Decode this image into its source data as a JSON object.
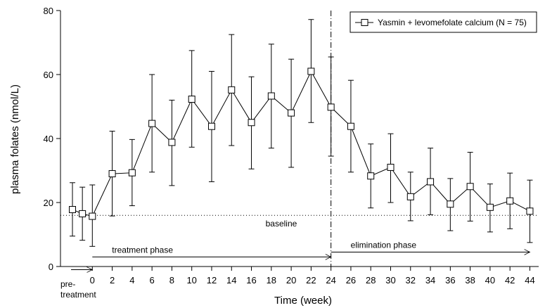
{
  "chart_data": {
    "type": "line",
    "xlabel": "Time (week)",
    "ylabel": "plasma folates (nmol/L)",
    "ylim": [
      0,
      80
    ],
    "yticks": [
      0,
      20,
      40,
      60,
      80
    ],
    "xticks": [
      0,
      2,
      4,
      6,
      8,
      10,
      12,
      14,
      16,
      18,
      20,
      22,
      24,
      26,
      28,
      30,
      32,
      34,
      36,
      38,
      40,
      42,
      44
    ],
    "pretreatment_label": [
      "pre-",
      "treatment"
    ],
    "legend": {
      "position": "top-right",
      "label": "Yasmin + levomefolate calcium (N = 75)"
    },
    "series": [
      {
        "name": "Yasmin + levomefolate calcium (N = 75)",
        "points": [
          {
            "x": -2,
            "y": 17.8,
            "lo": 9.5,
            "hi": 26.2
          },
          {
            "x": -1,
            "y": 16.5,
            "lo": 8.2,
            "hi": 24.8
          },
          {
            "x": 0,
            "y": 15.7,
            "lo": 6.3,
            "hi": 25.5
          },
          {
            "x": 2,
            "y": 29.0,
            "lo": 15.8,
            "hi": 42.3
          },
          {
            "x": 4,
            "y": 29.3,
            "lo": 19.0,
            "hi": 39.7
          },
          {
            "x": 6,
            "y": 44.7,
            "lo": 29.5,
            "hi": 60.0
          },
          {
            "x": 8,
            "y": 38.8,
            "lo": 25.3,
            "hi": 52.0
          },
          {
            "x": 10,
            "y": 52.3,
            "lo": 37.3,
            "hi": 67.5
          },
          {
            "x": 12,
            "y": 43.8,
            "lo": 26.5,
            "hi": 61.0
          },
          {
            "x": 14,
            "y": 55.2,
            "lo": 37.8,
            "hi": 72.5
          },
          {
            "x": 16,
            "y": 45.0,
            "lo": 30.5,
            "hi": 59.3
          },
          {
            "x": 18,
            "y": 53.3,
            "lo": 37.0,
            "hi": 69.5
          },
          {
            "x": 20,
            "y": 48.0,
            "lo": 31.0,
            "hi": 64.8
          },
          {
            "x": 22,
            "y": 61.0,
            "lo": 45.0,
            "hi": 77.2
          },
          {
            "x": 24,
            "y": 49.8,
            "lo": 34.5,
            "hi": 65.5
          },
          {
            "x": 26,
            "y": 43.8,
            "lo": 29.5,
            "hi": 58.2
          },
          {
            "x": 28,
            "y": 28.3,
            "lo": 18.3,
            "hi": 38.3
          },
          {
            "x": 30,
            "y": 31.0,
            "lo": 20.0,
            "hi": 41.5
          },
          {
            "x": 32,
            "y": 21.8,
            "lo": 14.3,
            "hi": 29.5
          },
          {
            "x": 34,
            "y": 26.5,
            "lo": 16.2,
            "hi": 37.0
          },
          {
            "x": 36,
            "y": 19.5,
            "lo": 11.2,
            "hi": 27.5
          },
          {
            "x": 38,
            "y": 25.0,
            "lo": 14.2,
            "hi": 35.7
          },
          {
            "x": 40,
            "y": 18.5,
            "lo": 10.8,
            "hi": 25.8
          },
          {
            "x": 42,
            "y": 20.5,
            "lo": 11.8,
            "hi": 29.2
          },
          {
            "x": 44,
            "y": 17.3,
            "lo": 7.5,
            "hi": 27.0
          }
        ]
      }
    ],
    "reference_lines": {
      "baseline": {
        "y": 16.0,
        "label": "baseline",
        "style": "dotted"
      },
      "phase_divider": {
        "x": 24,
        "style": "dash-dot"
      }
    },
    "phases": [
      {
        "label": "treatment phase",
        "from": 0,
        "to": 24,
        "y": 3.0
      },
      {
        "label": "elimination phase",
        "from": 24,
        "to": 44,
        "y": 4.5
      }
    ],
    "pretreatment_arrow": {
      "from": -2,
      "to": 0,
      "y": -1.0
    }
  }
}
